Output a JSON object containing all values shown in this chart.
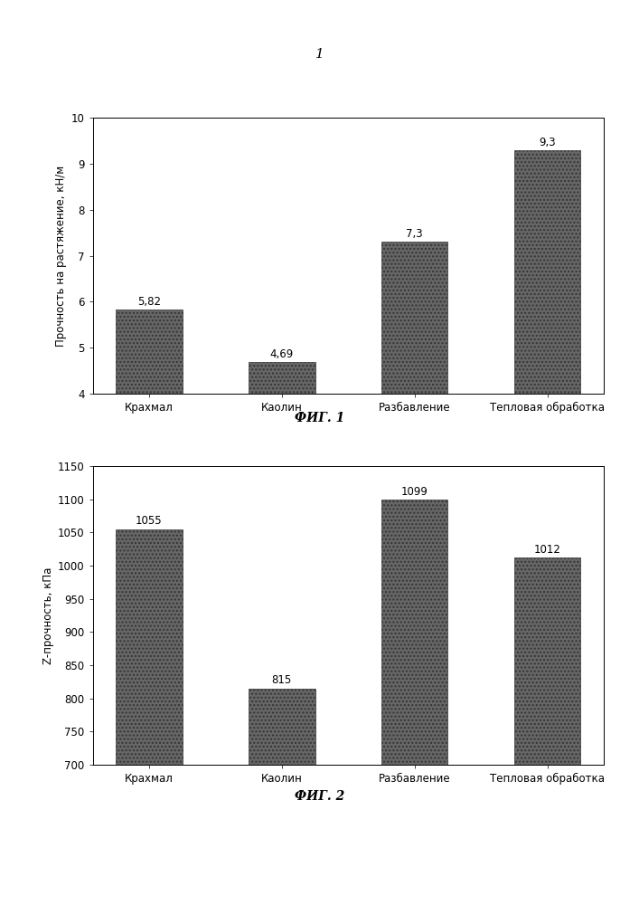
{
  "fig1": {
    "categories": [
      "Крахмал",
      "Каолин",
      "Разбавление",
      "Тепловая обработка"
    ],
    "values": [
      5.82,
      4.69,
      7.3,
      9.3
    ],
    "ylabel": "Прочность на растяжение, кН/м",
    "ylim": [
      4,
      10
    ],
    "yticks": [
      4,
      5,
      6,
      7,
      8,
      9,
      10
    ],
    "fig_label": "ФИГ. 1",
    "value_labels": [
      "5,82",
      "4,69",
      "7,3",
      "9,3"
    ]
  },
  "fig2": {
    "categories": [
      "Крахмал",
      "Каолин",
      "Разбавление",
      "Тепловая обработка"
    ],
    "values": [
      1055,
      815,
      1099,
      1012
    ],
    "ylabel": "Z-прочность, кПа",
    "ylim": [
      700,
      1150
    ],
    "yticks": [
      700,
      750,
      800,
      850,
      900,
      950,
      1000,
      1050,
      1100,
      1150
    ],
    "fig_label": "ФИГ. 2",
    "value_labels": [
      "1055",
      "815",
      "1099",
      "1012"
    ]
  },
  "bar_color": "#666666",
  "page_bg": "#ffffff",
  "chart_bg": "#ffffff",
  "page_number": "1",
  "font_size_axis": 8.5,
  "font_size_ylabel": 8.5,
  "font_size_value": 8.5,
  "font_size_page": 11,
  "font_size_fig_label": 10
}
